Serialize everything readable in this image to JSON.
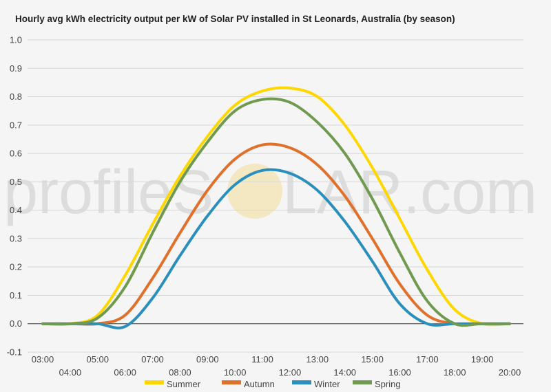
{
  "chart_data": {
    "type": "line",
    "title": "Hourly avg kWh electricity output per kW of Solar PV installed in St Leonards, Australia (by season)",
    "xlabel": "",
    "ylabel": "",
    "ylim": [
      -0.1,
      1.0
    ],
    "yticks": [
      "-0.1",
      "0.0",
      "0.1",
      "0.2",
      "0.3",
      "0.4",
      "0.5",
      "0.6",
      "0.7",
      "0.8",
      "0.9",
      "1.0"
    ],
    "x": [
      "03:00",
      "04:00",
      "05:00",
      "06:00",
      "07:00",
      "08:00",
      "09:00",
      "10:00",
      "11:00",
      "12:00",
      "13:00",
      "14:00",
      "15:00",
      "16:00",
      "17:00",
      "18:00",
      "19:00",
      "20:00"
    ],
    "grid": true,
    "legend_position": "bottom",
    "series": [
      {
        "name": "Summer",
        "color": "#ffd700",
        "values": [
          0.0,
          0.0,
          0.03,
          0.17,
          0.35,
          0.52,
          0.66,
          0.77,
          0.82,
          0.83,
          0.8,
          0.7,
          0.55,
          0.37,
          0.19,
          0.05,
          0.0,
          0.0
        ]
      },
      {
        "name": "Autumn",
        "color": "#e0702a",
        "values": [
          0.0,
          0.0,
          0.0,
          0.03,
          0.16,
          0.32,
          0.47,
          0.58,
          0.63,
          0.62,
          0.56,
          0.45,
          0.3,
          0.14,
          0.03,
          0.0,
          0.0,
          0.0
        ]
      },
      {
        "name": "Winter",
        "color": "#2a8fbd",
        "values": [
          0.0,
          0.0,
          0.0,
          -0.01,
          0.09,
          0.24,
          0.38,
          0.49,
          0.54,
          0.53,
          0.47,
          0.36,
          0.22,
          0.07,
          0.0,
          0.0,
          0.0,
          0.0
        ]
      },
      {
        "name": "Spring",
        "color": "#6f9a4f",
        "values": [
          0.0,
          0.0,
          0.02,
          0.13,
          0.32,
          0.5,
          0.64,
          0.75,
          0.79,
          0.78,
          0.71,
          0.6,
          0.44,
          0.25,
          0.08,
          0.0,
          0.0,
          0.0
        ]
      }
    ]
  },
  "watermark": {
    "left_text": "profileS",
    "right_text": "LAR.com",
    "sun_color": "#f2c94c"
  }
}
